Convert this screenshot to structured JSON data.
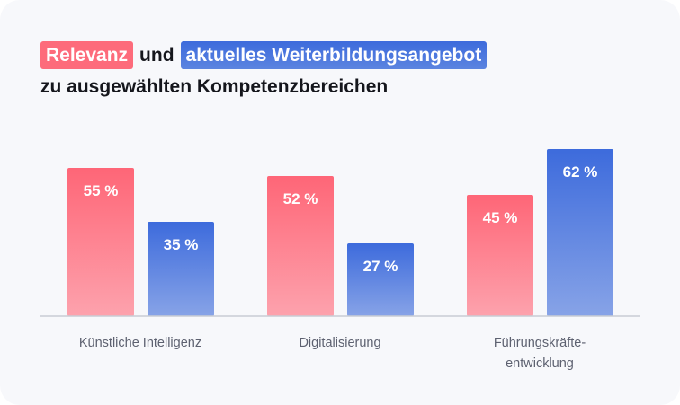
{
  "title": {
    "highlight_relevance": "Relevanz",
    "connector": "und",
    "highlight_offer": "aktuelles Weiterbildungsangebot",
    "line2": "zu ausgewählten Kompetenzbereichen"
  },
  "colors": {
    "relevance": "#fd6b7b",
    "offer": "#3d6bdc",
    "axis": "#c9ccd4",
    "label": "#5d6170"
  },
  "chart_data": {
    "type": "bar",
    "title": "Relevanz und aktuelles Weiterbildungsangebot zu ausgewählten Kompetenzbereichen",
    "xlabel": "",
    "ylabel": "",
    "ylim": [
      0,
      65
    ],
    "grid": false,
    "legend": "in-title",
    "categories": [
      "Künstliche Intelligenz",
      "Digitalisierung",
      "Führungskräfte-entwicklung"
    ],
    "category_lines": [
      [
        "Künstliche Intelligenz"
      ],
      [
        "Digitalisierung"
      ],
      [
        "Führungskräfte-",
        "entwicklung"
      ]
    ],
    "series": [
      {
        "name": "Relevanz",
        "values": [
          55,
          52,
          45
        ],
        "labels": [
          "55 %",
          "52 %",
          "45 %"
        ]
      },
      {
        "name": "aktuelles Weiterbildungsangebot",
        "values": [
          35,
          27,
          62
        ],
        "labels": [
          "35 %",
          "27 %",
          "62 %"
        ]
      }
    ]
  }
}
